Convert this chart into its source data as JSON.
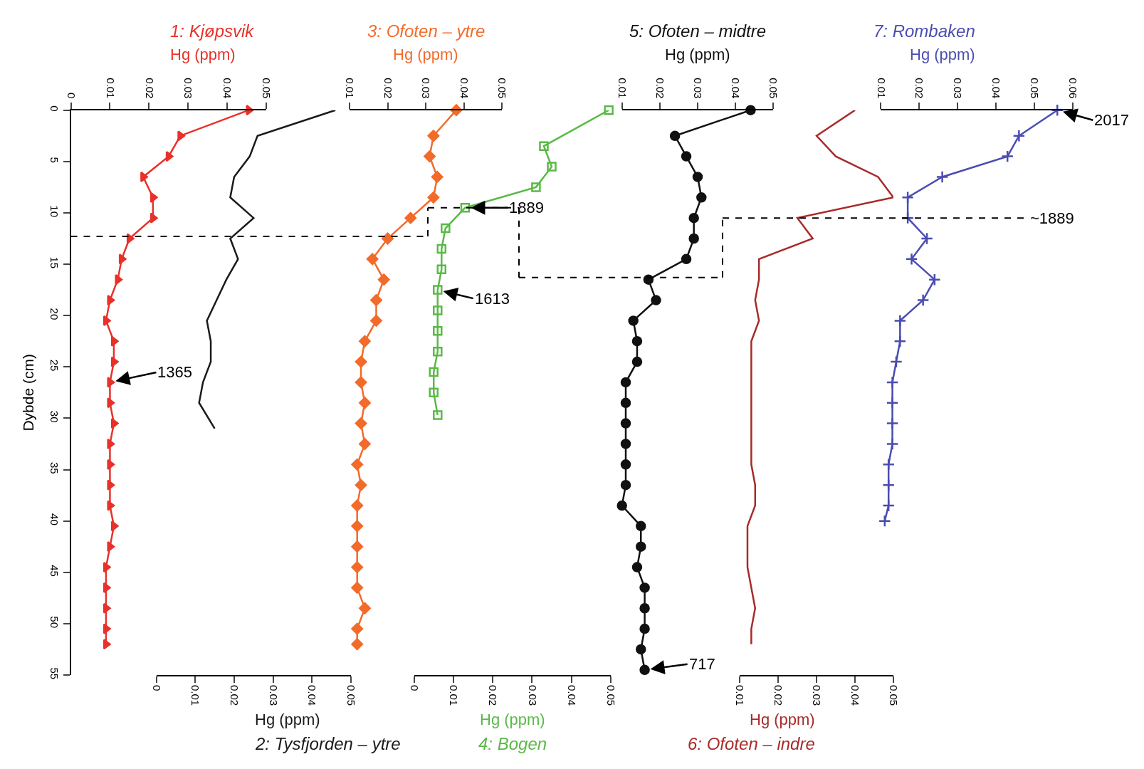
{
  "chart_data": [
    {
      "type": "line",
      "title": "1: Kjøpsvik",
      "xlabel": "Hg (ppm)",
      "ylabel": "Dybde (cm)",
      "xlim": [
        0,
        0.05
      ],
      "xticks": [
        0,
        0.01,
        0.02,
        0.03,
        0.04,
        0.05
      ],
      "ylim": [
        55,
        0
      ],
      "yticks": [
        0,
        5,
        10,
        15,
        20,
        25,
        30,
        35,
        40,
        45,
        50,
        55
      ],
      "marker": "triangle",
      "line_style": "solid",
      "series": [
        {
          "color": "#e8312a",
          "x": [
            0.0455,
            0.028,
            0.025,
            0.0185,
            0.021,
            0.021,
            0.015,
            0.013,
            0.012,
            0.01,
            0.009,
            0.011,
            0.011,
            0.01,
            0.01,
            0.011,
            0.01,
            0.01,
            0.01,
            0.01,
            0.011,
            0.01,
            0.009,
            0.009,
            0.009,
            0.009,
            0.009
          ],
          "values": [
            0,
            2.5,
            4.5,
            6.5,
            8.5,
            10.5,
            12.5,
            14.5,
            16.5,
            18.5,
            20.5,
            22.5,
            24.5,
            26.5,
            28.5,
            30.5,
            32.5,
            34.5,
            36.5,
            38.5,
            40.5,
            42.5,
            44.5,
            46.5,
            48.5,
            50.5,
            52
          ]
        }
      ],
      "annotations": [
        {
          "text": "1365",
          "x": 0.01,
          "y": 26.5
        }
      ],
      "ref_lines": [
        {
          "axis": "y",
          "value": 12.3,
          "color": "#000000",
          "line_style": "dashed"
        }
      ]
    },
    {
      "type": "line",
      "title": "2: Tysfjorden – ytre",
      "xlabel": "Hg (ppm)",
      "xlim": [
        0,
        0.05
      ],
      "xticks": [
        0,
        0.01,
        0.02,
        0.03,
        0.04,
        0.05
      ],
      "ylim": [
        55,
        0
      ],
      "yticks": [
        0,
        5,
        10,
        15,
        20,
        25,
        30,
        35,
        40,
        45,
        50,
        55
      ],
      "tick_labels": "x",
      "marker": "none",
      "line_style": "solid",
      "series": [
        {
          "color": "#1a1a1a",
          "x": [
            0.046,
            0.026,
            0.024,
            0.02,
            0.019,
            0.025,
            0.019,
            0.021,
            0.018,
            0.0155,
            0.013,
            0.014,
            0.014,
            0.012,
            0.011,
            0.015
          ],
          "values": [
            0,
            2.5,
            4.5,
            6.5,
            8.5,
            10.5,
            12.5,
            14.5,
            16.5,
            18.5,
            20.5,
            22.5,
            24.5,
            26.5,
            28.5,
            31
          ]
        }
      ]
    },
    {
      "type": "line",
      "title": "3: Ofoten – ytre",
      "xlabel": "Hg (ppm)",
      "xlim": [
        0.01,
        0.05
      ],
      "xticks": [
        0.01,
        0.02,
        0.03,
        0.04,
        0.05
      ],
      "ylim": [
        55,
        0
      ],
      "yticks": [
        0,
        5,
        10,
        15,
        20,
        25,
        30,
        35,
        40,
        45,
        50,
        55
      ],
      "tick_labels": "x",
      "marker": "diamond",
      "line_style": "solid",
      "series": [
        {
          "color": "#f26b2a",
          "x": [
            0.038,
            0.032,
            0.031,
            0.033,
            0.032,
            0.026,
            0.02,
            0.016,
            0.019,
            0.017,
            0.017,
            0.014,
            0.013,
            0.013,
            0.014,
            0.013,
            0.014,
            0.012,
            0.013,
            0.012,
            0.012,
            0.012,
            0.012,
            0.012,
            0.014,
            0.012,
            0.012
          ],
          "values": [
            0,
            2.5,
            4.5,
            6.5,
            8.5,
            10.5,
            12.5,
            14.5,
            16.5,
            18.5,
            20.5,
            22.5,
            24.5,
            26.5,
            28.5,
            30.5,
            32.5,
            34.5,
            36.5,
            38.5,
            40.5,
            42.5,
            44.5,
            46.5,
            48.5,
            50.5,
            52
          ]
        }
      ]
    },
    {
      "type": "line",
      "title": "4: Bogen",
      "xlabel": "Hg (ppm)",
      "xlim": [
        0,
        0.05
      ],
      "xticks": [
        0,
        0.01,
        0.02,
        0.03,
        0.04,
        0.05
      ],
      "ylim": [
        55,
        0
      ],
      "yticks": [
        0,
        5,
        10,
        15,
        20,
        25,
        30,
        35,
        40,
        45,
        50,
        55
      ],
      "tick_labels": "x",
      "marker": "square",
      "line_style": "solid",
      "series": [
        {
          "color": "#5ab947",
          "x": [
            0.0495,
            0.033,
            0.035,
            0.031,
            0.013,
            0.008,
            0.007,
            0.007,
            0.006,
            0.006,
            0.006,
            0.006,
            0.005,
            0.005,
            0.006
          ],
          "values": [
            0,
            3.5,
            5.5,
            7.5,
            9.5,
            11.5,
            13.5,
            15.5,
            17.5,
            19.5,
            21.5,
            23.5,
            25.5,
            27.5,
            29.7
          ]
        }
      ],
      "annotations": [
        {
          "text": "1889",
          "x": 0.013,
          "y": 9.5
        },
        {
          "text": "1613",
          "x": 0.006,
          "y": 17.5
        }
      ],
      "ref_lines": [
        {
          "axis": "y",
          "value": 9.5,
          "color": "#000000",
          "line_style": "dashed"
        }
      ]
    },
    {
      "type": "line",
      "title": "5: Ofoten – midtre",
      "xlabel": "Hg (ppm)",
      "xlim": [
        0.01,
        0.05
      ],
      "xticks": [
        0.01,
        0.02,
        0.03,
        0.04,
        0.05
      ],
      "ylim": [
        55,
        0
      ],
      "yticks": [
        0,
        5,
        10,
        15,
        20,
        25,
        30,
        35,
        40,
        45,
        50,
        55
      ],
      "tick_labels": "x",
      "marker": "circle",
      "line_style": "solid",
      "series": [
        {
          "color": "#111111",
          "x": [
            0.044,
            0.024,
            0.027,
            0.03,
            0.031,
            0.029,
            0.029,
            0.027,
            0.017,
            0.019,
            0.013,
            0.014,
            0.014,
            0.011,
            0.011,
            0.011,
            0.011,
            0.011,
            0.011,
            0.01,
            0.015,
            0.015,
            0.014,
            0.016,
            0.016,
            0.016,
            0.015,
            0.016
          ],
          "values": [
            0,
            2.5,
            4.5,
            6.5,
            8.5,
            10.5,
            12.5,
            14.5,
            16.5,
            18.5,
            20.5,
            22.5,
            24.5,
            26.5,
            28.5,
            30.5,
            32.5,
            34.5,
            36.5,
            38.5,
            40.5,
            42.5,
            44.5,
            46.5,
            48.5,
            50.5,
            52.5,
            54.5
          ]
        }
      ],
      "annotations": [
        {
          "text": "717",
          "x": 0.016,
          "y": 54.5
        }
      ],
      "ref_lines": [
        {
          "axis": "y",
          "value": 16.3,
          "color": "#000000",
          "line_style": "dashed"
        }
      ]
    },
    {
      "type": "line",
      "title": "6: Ofoten – indre",
      "xlabel": "Hg (ppm)",
      "xlim": [
        0.01,
        0.05
      ],
      "xticks": [
        0.01,
        0.02,
        0.03,
        0.04,
        0.05
      ],
      "ylim": [
        55,
        0
      ],
      "yticks": [
        0,
        5,
        10,
        15,
        20,
        25,
        30,
        35,
        40,
        45,
        50,
        55
      ],
      "tick_labels": "x",
      "marker": "none",
      "line_style": "solid",
      "series": [
        {
          "color": "#a82a2a",
          "x": [
            0.04,
            0.03,
            0.035,
            0.046,
            0.05,
            0.025,
            0.029,
            0.015,
            0.015,
            0.014,
            0.015,
            0.013,
            0.013,
            0.013,
            0.013,
            0.013,
            0.013,
            0.013,
            0.014,
            0.014,
            0.012,
            0.012,
            0.012,
            0.013,
            0.014,
            0.013,
            0.013
          ],
          "values": [
            0,
            2.5,
            4.5,
            6.5,
            8.5,
            10.5,
            12.5,
            14.5,
            16.5,
            18.5,
            20.5,
            22.5,
            24.5,
            26.5,
            28.5,
            30.5,
            32.5,
            34.5,
            36.5,
            38.5,
            40.5,
            42.5,
            44.5,
            46.5,
            48.5,
            50.5,
            52
          ]
        }
      ]
    },
    {
      "type": "line",
      "title": "7: Rombaken",
      "xlabel": "Hg (ppm)",
      "xlim": [
        0.01,
        0.06
      ],
      "xticks": [
        0.01,
        0.02,
        0.03,
        0.04,
        0.05,
        0.06
      ],
      "ylim": [
        55,
        0
      ],
      "yticks": [
        0,
        5,
        10,
        15,
        20,
        25,
        30,
        35,
        40,
        45,
        50,
        55
      ],
      "tick_labels": "x",
      "marker": "cross",
      "line_style": "solid",
      "series": [
        {
          "color": "#4a4db0",
          "x": [
            0.056,
            0.046,
            0.043,
            0.026,
            0.017,
            0.017,
            0.022,
            0.018,
            0.024,
            0.021,
            0.015,
            0.015,
            0.014,
            0.013,
            0.013,
            0.013,
            0.013,
            0.012,
            0.012,
            0.012,
            0.011
          ],
          "values": [
            0,
            2.5,
            4.5,
            6.5,
            8.5,
            10.5,
            12.5,
            14.5,
            16.5,
            18.5,
            20.5,
            22.5,
            24.5,
            26.5,
            28.5,
            30.5,
            32.5,
            34.5,
            36.5,
            38.5,
            40
          ]
        }
      ],
      "annotations": [
        {
          "text": "2017",
          "x": 0.056,
          "y": 0
        },
        "~1889"
      ],
      "ref_lines": [
        {
          "axis": "y",
          "value": 10.5,
          "color": "#000000",
          "line_style": "dashed"
        }
      ]
    }
  ]
}
